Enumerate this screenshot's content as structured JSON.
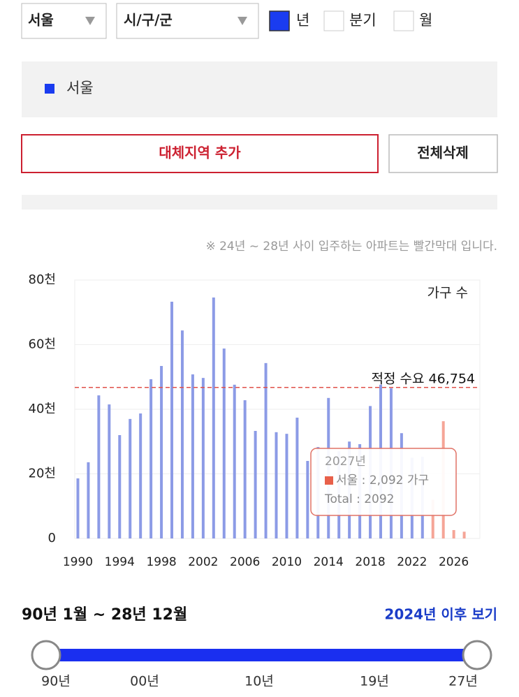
{
  "filters": {
    "region": "서울",
    "district": "시/구/군",
    "periods": [
      "년",
      "분기",
      "월"
    ]
  },
  "buttons": {
    "add": "대체지역 추가",
    "delete_all": "전체삭제"
  },
  "note": "※ 24년 ~ 28년 사이 입주하는 아파트는 빨간막대 입니다.",
  "chart_data": {
    "type": "bar",
    "y_label": "가구 수",
    "x": [
      1990,
      1991,
      1992,
      1993,
      1994,
      1995,
      1996,
      1997,
      1998,
      1999,
      2000,
      2001,
      2002,
      2003,
      2004,
      2005,
      2006,
      2007,
      2008,
      2009,
      2010,
      2011,
      2012,
      2013,
      2014,
      2015,
      2016,
      2017,
      2018,
      2019,
      2020,
      2021,
      2022,
      2023,
      2024,
      2025,
      2026,
      2027
    ],
    "series": [
      {
        "name": "서울",
        "color": "#8c9be6",
        "values": [
          18600,
          23600,
          44300,
          41500,
          32000,
          37000,
          38700,
          49300,
          53400,
          73300,
          64400,
          50800,
          49700,
          74600,
          58800,
          47600,
          42800,
          33300,
          54300,
          32900,
          32400,
          37400,
          24000,
          28300,
          43500,
          27000,
          30000,
          29200,
          41000,
          47600,
          46500,
          32600,
          25000,
          25300,
          12000,
          36300,
          2600,
          2092
        ]
      }
    ],
    "highlight": {
      "from": 2024,
      "color": "#f5a597"
    },
    "xlim": [
      1989.7,
      2028.5
    ],
    "xticks": [
      1990,
      1994,
      1998,
      2002,
      2006,
      2010,
      2014,
      2018,
      2022,
      2026
    ],
    "ylim": [
      0,
      80000
    ],
    "yticks": [
      0,
      {
        "value": 20000,
        "label": "20천"
      },
      {
        "value": 40000,
        "label": "40천"
      },
      {
        "value": 60000,
        "label": "60천"
      },
      {
        "value": 80000,
        "label": "80천"
      }
    ],
    "grid": true,
    "reference_line": {
      "value": 46754,
      "label": "적정 수요 46,754",
      "color": "#e0504a"
    },
    "tooltip": {
      "title": "2027년",
      "lines": [
        "서울 : 2,092 가구",
        "Total : 2092"
      ]
    }
  },
  "range": {
    "text": "90년 1월 ~ 28년 12월",
    "link": "2024년 이후 보기"
  },
  "slider": {
    "labels": [
      "90년",
      "00년",
      "10년",
      "19년",
      "27년"
    ]
  }
}
